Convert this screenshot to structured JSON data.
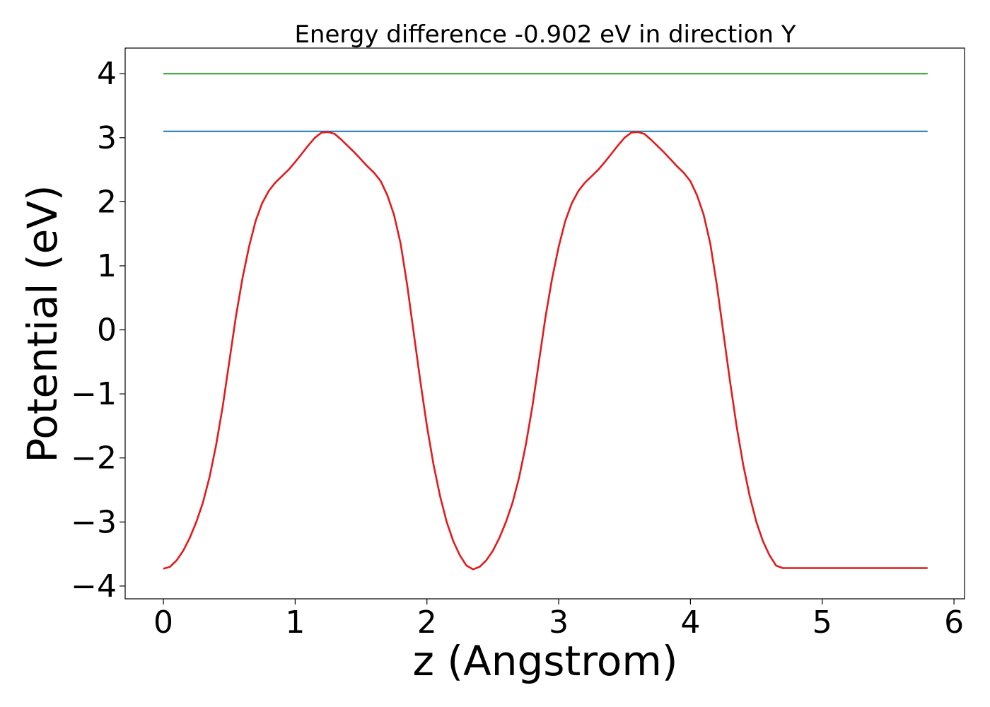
{
  "chart_data": {
    "type": "line",
    "title": "Energy difference -0.902 eV in direction Y",
    "xlabel": "z (Angstrom)",
    "ylabel": "Potential (eV)",
    "xlim": [
      -0.29,
      6.08
    ],
    "ylim": [
      -4.2,
      4.4
    ],
    "xticks": [
      0,
      1,
      2,
      3,
      4,
      5,
      6
    ],
    "xtick_labels": [
      "0",
      "1",
      "2",
      "3",
      "4",
      "5",
      "6"
    ],
    "yticks": [
      -4,
      -3,
      -2,
      -1,
      0,
      1,
      2,
      3,
      4
    ],
    "ytick_labels": [
      "−4",
      "−3",
      "−2",
      "−1",
      "0",
      "1",
      "2",
      "3",
      "4"
    ],
    "grid": false,
    "series": [
      {
        "color": "#2ca02c",
        "x": [
          0,
          5.8
        ],
        "y": [
          4.0,
          4.0
        ]
      },
      {
        "color": "#1f77b4",
        "x": [
          0,
          5.8
        ],
        "y": [
          3.1,
          3.1
        ]
      },
      {
        "color": "#e31a1c",
        "x": [
          0,
          0.05,
          0.1,
          0.15,
          0.2,
          0.25,
          0.3,
          0.35,
          0.4,
          0.45,
          0.5,
          0.55,
          0.6,
          0.65,
          0.7,
          0.75,
          0.8,
          0.85,
          0.9,
          0.95,
          1.0,
          1.05,
          1.1,
          1.15,
          1.2,
          1.25,
          1.3,
          1.35,
          1.4,
          1.45,
          1.5,
          1.55,
          1.6,
          1.65,
          1.7,
          1.75,
          1.8,
          1.85,
          1.9,
          1.95,
          2.0,
          2.05,
          2.1,
          2.15,
          2.2,
          2.25,
          2.3,
          2.35,
          2.4,
          2.45,
          2.5,
          2.55,
          2.6,
          2.65,
          2.7,
          2.75,
          2.8,
          2.85,
          2.9,
          2.95,
          3.0,
          3.05,
          3.1,
          3.15,
          3.2,
          3.25,
          3.3,
          3.35,
          3.4,
          3.45,
          3.5,
          3.55,
          3.6,
          3.65,
          3.7,
          3.75,
          3.8,
          3.85,
          3.9,
          3.95,
          4.0,
          4.05,
          4.1,
          4.15,
          4.2,
          4.25,
          4.3,
          4.35,
          4.4,
          4.45,
          4.5,
          4.55,
          4.6,
          4.65,
          4.7,
          4.75,
          4.8,
          4.85,
          4.9,
          4.95,
          5.0,
          5.05,
          5.1,
          5.15,
          5.2,
          5.25,
          5.3,
          5.35,
          5.4,
          5.45,
          5.5,
          5.55,
          5.6,
          5.65,
          5.7,
          5.75,
          5.8
        ],
        "y": [
          -3.73,
          -3.7,
          -3.6,
          -3.45,
          -3.25,
          -3.0,
          -2.7,
          -2.3,
          -1.8,
          -1.2,
          -0.5,
          0.2,
          0.8,
          1.3,
          1.7,
          1.98,
          2.17,
          2.3,
          2.4,
          2.5,
          2.62,
          2.75,
          2.88,
          3.0,
          3.08,
          3.09,
          3.06,
          2.97,
          2.87,
          2.77,
          2.66,
          2.55,
          2.45,
          2.32,
          2.1,
          1.8,
          1.35,
          0.7,
          -0.05,
          -0.8,
          -1.5,
          -2.1,
          -2.6,
          -3.0,
          -3.3,
          -3.52,
          -3.68,
          -3.74,
          -3.7,
          -3.6,
          -3.45,
          -3.25,
          -3.0,
          -2.7,
          -2.3,
          -1.8,
          -1.2,
          -0.5,
          0.2,
          0.8,
          1.3,
          1.7,
          1.98,
          2.17,
          2.3,
          2.4,
          2.5,
          2.62,
          2.75,
          2.88,
          3.0,
          3.08,
          3.09,
          3.06,
          2.97,
          2.87,
          2.77,
          2.66,
          2.55,
          2.45,
          2.32,
          2.1,
          1.8,
          1.35,
          0.7,
          -0.05,
          -0.8,
          -1.5,
          -2.1,
          -2.6,
          -3.0,
          -3.3,
          -3.52,
          -3.68,
          -3.72,
          -3.72,
          -3.72,
          -3.72,
          -3.72,
          -3.72,
          -3.72,
          -3.72,
          -3.72,
          -3.72,
          -3.72,
          -3.72,
          -3.72,
          -3.72,
          -3.72,
          -3.72,
          -3.72,
          -3.72,
          -3.72,
          -3.72,
          -3.72,
          -3.72,
          -3.72
        ]
      }
    ]
  }
}
